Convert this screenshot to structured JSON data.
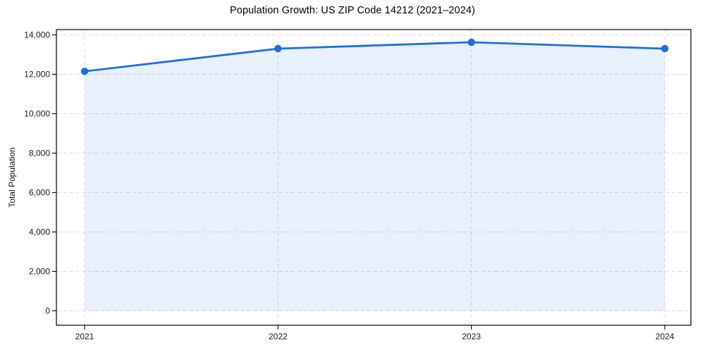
{
  "page": {
    "background": "#ffffff"
  },
  "chart_data": {
    "type": "area",
    "title": "Population Growth: US ZIP Code 14212 (2021–2024)",
    "xlabel": "",
    "ylabel": "Total Population",
    "x": [
      "2021",
      "2022",
      "2023",
      "2024"
    ],
    "series": [
      {
        "name": "Total Population",
        "values": [
          12150,
          13300,
          13625,
          13300
        ]
      }
    ],
    "ylim": [
      0,
      14000
    ],
    "ytick_step": 2000,
    "ytick_labels": [
      "0",
      "2,000",
      "4,000",
      "6,000",
      "8,000",
      "10,000",
      "12,000",
      "14,000"
    ],
    "xtick_labels": [
      "2021",
      "2022",
      "2023",
      "2024"
    ],
    "grid": true,
    "grid_style": "dashed",
    "legend_position": "none",
    "marker": "circle",
    "colors": {
      "line": "#1f6fe0",
      "marker": "#1f6fe0",
      "area_fill": "#1f6fe0",
      "area_opacity": 0.1,
      "grid": "#d9d9d9",
      "spine": "#000000",
      "tick_text": "#1a1a1a",
      "background": "#ffffff"
    }
  }
}
